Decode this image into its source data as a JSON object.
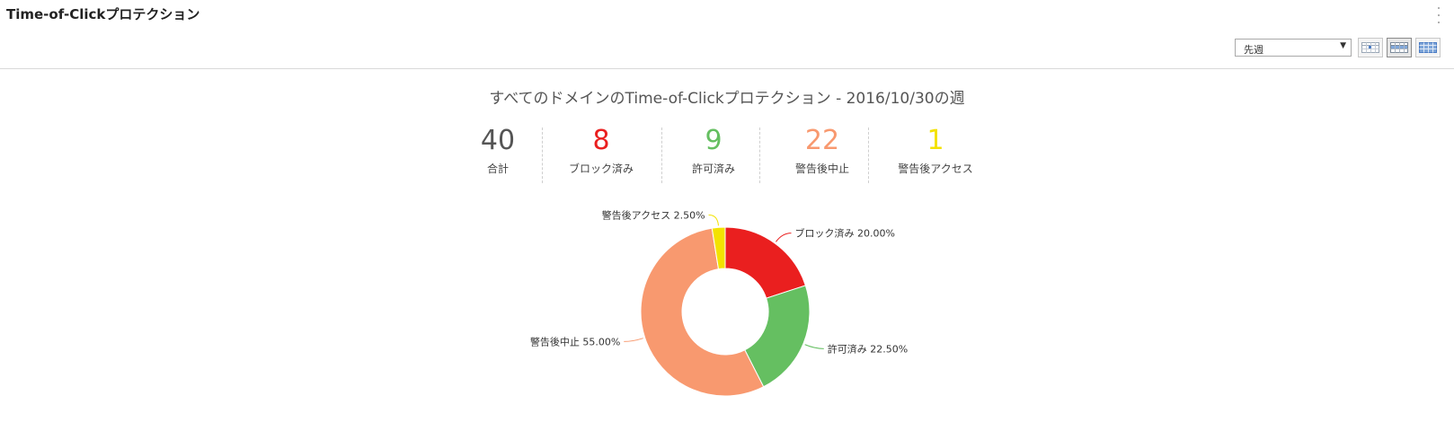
{
  "header": {
    "title": "Time-of-Clickプロテクション",
    "period_select": {
      "value": "先週"
    },
    "view_buttons": [
      "daily-view",
      "weekly-view",
      "monthly-view"
    ]
  },
  "summary": {
    "title": "すべてのドメインのTime-of-Clickプロテクション - 2016/10/30の週",
    "stats": [
      {
        "value": "40",
        "label": "合計",
        "color": "#555555"
      },
      {
        "value": "8",
        "label": "ブロック済み",
        "color": "#ea1f1f"
      },
      {
        "value": "9",
        "label": "許可済み",
        "color": "#65bf61"
      },
      {
        "value": "22",
        "label": "警告後中止",
        "color": "#f8996f"
      },
      {
        "value": "1",
        "label": "警告後アクセス",
        "color": "#f3e200"
      }
    ]
  },
  "chart_data": {
    "type": "pie",
    "donut": true,
    "categories": [
      "ブロック済み",
      "許可済み",
      "警告後中止",
      "警告後アクセス"
    ],
    "values": [
      20.0,
      22.5,
      55.0,
      2.5
    ],
    "labels": [
      "ブロック済み 20.00%",
      "許可済み 22.50%",
      "警告後中止 55.00%",
      "警告後アクセス 2.50%"
    ],
    "colors": [
      "#ea1f1f",
      "#65bf61",
      "#f8996f",
      "#f3e200"
    ]
  }
}
